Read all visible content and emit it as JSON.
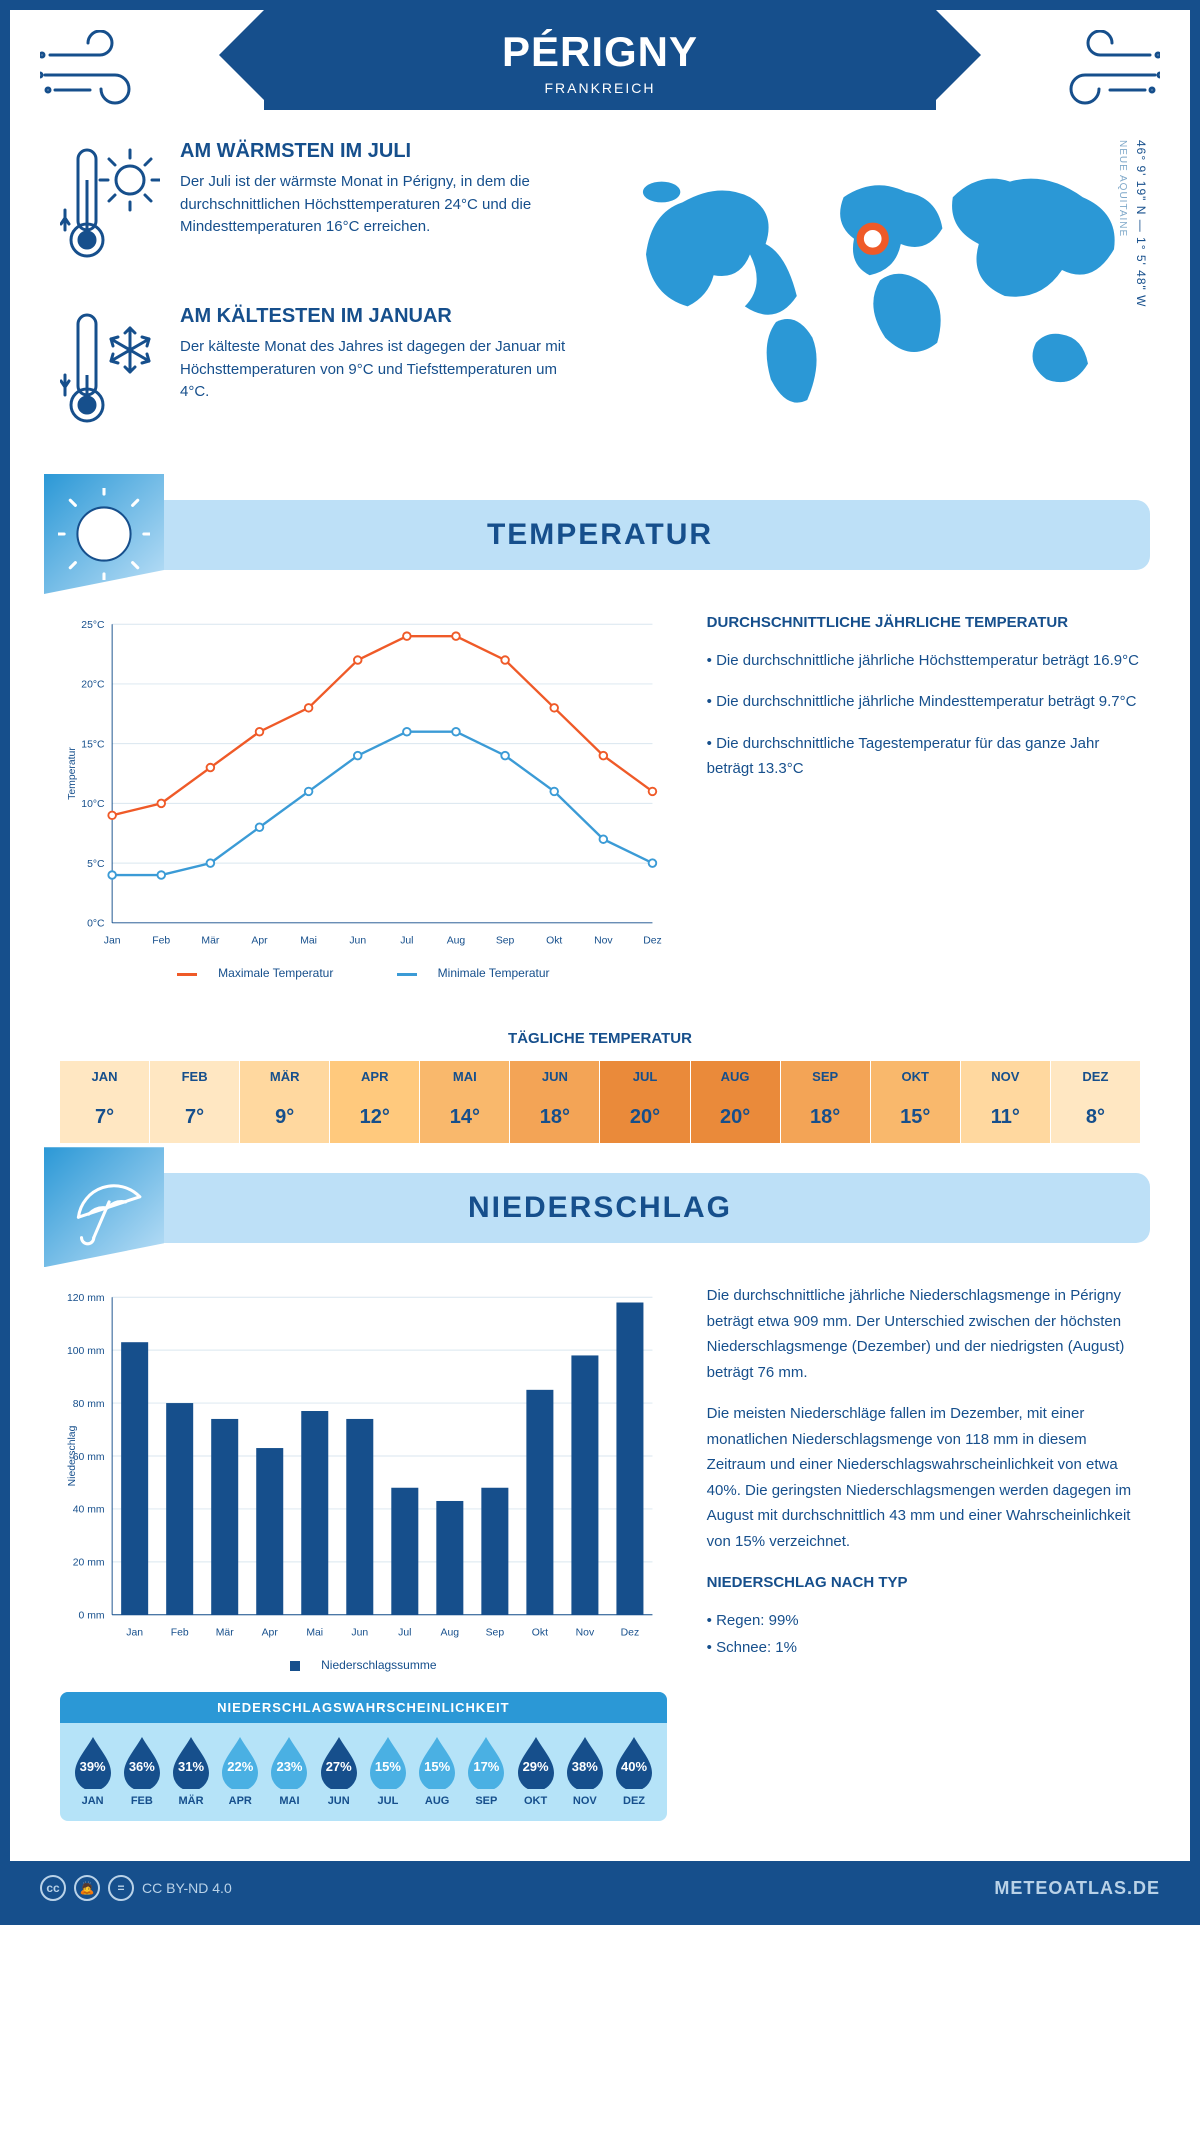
{
  "title": "PÉRIGNY",
  "subtitle": "FRANKREICH",
  "coords_line": "46° 9' 19\" N — 1° 5' 48\" W",
  "region": "NEUE AQUITAINE",
  "warmest": {
    "title": "AM WÄRMSTEN IM JULI",
    "text": "Der Juli ist der wärmste Monat in Périgny, in dem die durchschnittlichen Höchsttemperaturen 24°C und die Mindesttemperaturen 16°C erreichen."
  },
  "coldest": {
    "title": "AM KÄLTESTEN IM JANUAR",
    "text": "Der kälteste Monat des Jahres ist dagegen der Januar mit Höchsttemperaturen von 9°C und Tiefsttemperaturen um 4°C."
  },
  "temp_section": {
    "title": "TEMPERATUR",
    "text_title": "DURCHSCHNITTLICHE JÄHRLICHE TEMPERATUR",
    "bullets": [
      "• Die durchschnittliche jährliche Höchsttemperatur beträgt 16.9°C",
      "• Die durchschnittliche jährliche Mindesttemperatur beträgt 9.7°C",
      "• Die durchschnittliche Tagestemperatur für das ganze Jahr beträgt 13.3°C"
    ],
    "chart": {
      "months": [
        "Jan",
        "Feb",
        "Mär",
        "Apr",
        "Mai",
        "Jun",
        "Jul",
        "Aug",
        "Sep",
        "Okt",
        "Nov",
        "Dez"
      ],
      "max": [
        9,
        10,
        13,
        16,
        18,
        22,
        24,
        24,
        22,
        18,
        14,
        11
      ],
      "min": [
        4,
        4,
        5,
        8,
        11,
        14,
        16,
        16,
        14,
        11,
        7,
        5
      ],
      "max_color": "#ef5a28",
      "min_color": "#3b9bd6",
      "ylim": [
        0,
        25
      ],
      "ytick_step": 5,
      "ylabel": "Temperatur",
      "legend_max": "Maximale Temperatur",
      "legend_min": "Minimale Temperatur",
      "grid_color": "#d9e6ef"
    },
    "daily_title": "TÄGLICHE TEMPERATUR",
    "daily_months": [
      "JAN",
      "FEB",
      "MÄR",
      "APR",
      "MAI",
      "JUN",
      "JUL",
      "AUG",
      "SEP",
      "OKT",
      "NOV",
      "DEZ"
    ],
    "daily_values": [
      "7°",
      "7°",
      "9°",
      "12°",
      "14°",
      "18°",
      "20°",
      "20°",
      "18°",
      "15°",
      "11°",
      "8°"
    ],
    "daily_colors": [
      "#ffe7c2",
      "#ffe7c2",
      "#ffd89f",
      "#ffc97d",
      "#f9b86c",
      "#f3a456",
      "#ea8a3a",
      "#ea8a3a",
      "#f3a456",
      "#f9b86c",
      "#ffd89f",
      "#ffe7c2"
    ]
  },
  "precip_section": {
    "title": "NIEDERSCHLAG",
    "para1": "Die durchschnittliche jährliche Niederschlagsmenge in Périgny beträgt etwa 909 mm. Der Unterschied zwischen der höchsten Niederschlagsmenge (Dezember) und der niedrigsten (August) beträgt 76 mm.",
    "para2": "Die meisten Niederschläge fallen im Dezember, mit einer monatlichen Niederschlagsmenge von 118 mm in diesem Zeitraum und einer Niederschlagswahrscheinlichkeit von etwa 40%. Die geringsten Niederschlagsmengen werden dagegen im August mit durchschnittlich 43 mm und einer Wahrscheinlichkeit von 15% verzeichnet.",
    "type_title": "NIEDERSCHLAG NACH TYP",
    "type_rain": "• Regen: 99%",
    "type_snow": "• Schnee: 1%",
    "chart": {
      "months": [
        "Jan",
        "Feb",
        "Mär",
        "Apr",
        "Mai",
        "Jun",
        "Jul",
        "Aug",
        "Sep",
        "Okt",
        "Nov",
        "Dez"
      ],
      "values": [
        103,
        80,
        74,
        63,
        77,
        74,
        48,
        43,
        48,
        85,
        98,
        118
      ],
      "bar_color": "#164f8c",
      "ylim": [
        0,
        120
      ],
      "ytick_step": 20,
      "ylabel": "Niederschlag",
      "legend": "Niederschlagssumme",
      "grid_color": "#d9e6ef"
    },
    "prob_title": "NIEDERSCHLAGSWAHRSCHEINLICHKEIT",
    "prob_months": [
      "JAN",
      "FEB",
      "MÄR",
      "APR",
      "MAI",
      "JUN",
      "JUL",
      "AUG",
      "SEP",
      "OKT",
      "NOV",
      "DEZ"
    ],
    "prob_values": [
      "39%",
      "36%",
      "31%",
      "22%",
      "23%",
      "27%",
      "15%",
      "15%",
      "17%",
      "29%",
      "38%",
      "40%"
    ],
    "prob_colors": [
      "#164f8c",
      "#164f8c",
      "#164f8c",
      "#4ab0e3",
      "#4ab0e3",
      "#164f8c",
      "#4ab0e3",
      "#4ab0e3",
      "#4ab0e3",
      "#164f8c",
      "#164f8c",
      "#164f8c"
    ]
  },
  "footer": {
    "license": "CC BY-ND 4.0",
    "site": "METEOATLAS.DE"
  }
}
